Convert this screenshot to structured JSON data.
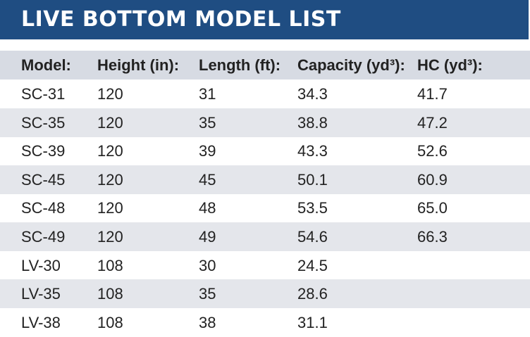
{
  "header": {
    "title": "LIVE BOTTOM MODEL LIST"
  },
  "table": {
    "columns": [
      "Model:",
      "Height (in):",
      "Length (ft):",
      "Capacity (yd³):",
      "HC (yd³):"
    ],
    "rows": [
      [
        "SC-31",
        "120",
        "31",
        "34.3",
        "41.7"
      ],
      [
        "SC-35",
        "120",
        "35",
        "38.8",
        "47.2"
      ],
      [
        "SC-39",
        "120",
        "39",
        "43.3",
        "52.6"
      ],
      [
        "SC-45",
        "120",
        "45",
        "50.1",
        "60.9"
      ],
      [
        "SC-48",
        "120",
        "48",
        "53.5",
        "65.0"
      ],
      [
        "SC-49",
        "120",
        "49",
        "54.6",
        "66.3"
      ],
      [
        "LV-30",
        "108",
        "30",
        "24.5"
      ],
      [
        "LV-35",
        "108",
        "35",
        "28.6"
      ],
      [
        "LV-38",
        "108",
        "38",
        "31.1"
      ]
    ]
  }
}
